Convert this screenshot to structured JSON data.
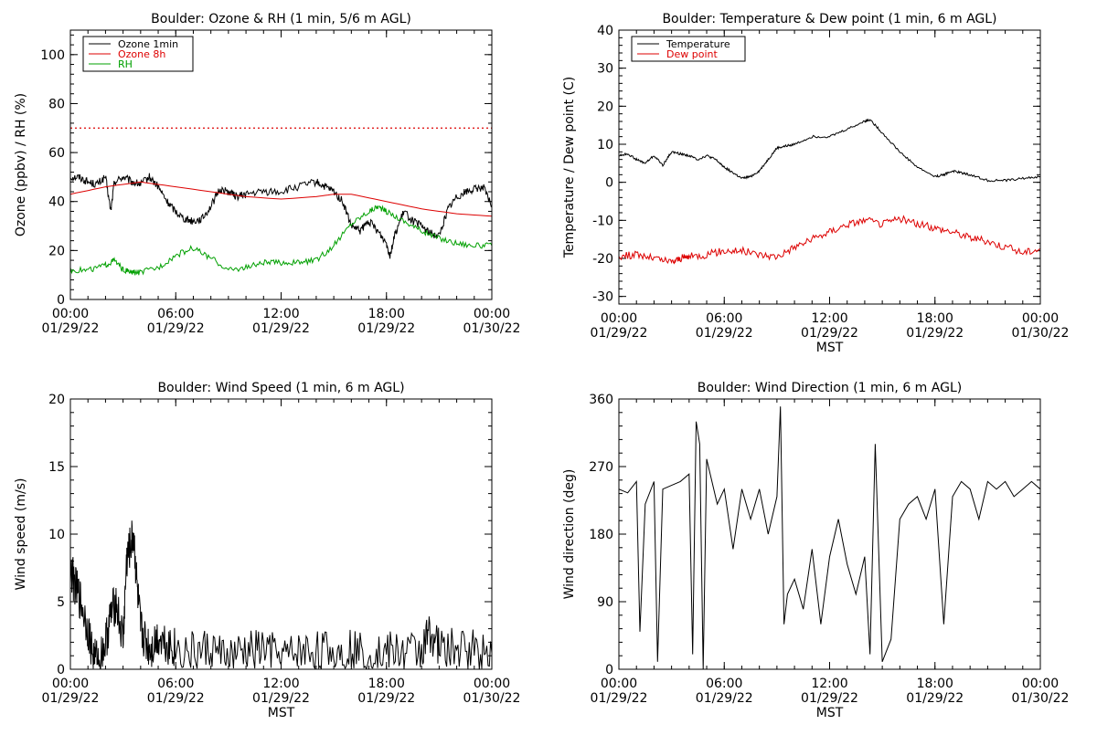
{
  "colors": {
    "ozone_1min": "#000000",
    "ozone_8h": "#dd0000",
    "rh": "#00a000",
    "temperature": "#000000",
    "dew_point": "#dd0000",
    "reference_line": "#dd0000"
  },
  "chart_data": [
    {
      "type": "line",
      "title": "Boulder: Ozone & RH (1 min, 5/6 m AGL)",
      "xlabel": "",
      "ylabel": "Ozone (ppbv) / RH (%)",
      "x_ticks": [
        "00:00",
        "06:00",
        "12:00",
        "18:00",
        "00:00"
      ],
      "x_dates": [
        "01/29/22",
        "01/29/22",
        "01/29/22",
        "01/29/22",
        "01/30/22"
      ],
      "xlim_hours": [
        0,
        24
      ],
      "ylim": [
        0,
        110
      ],
      "y_ticks": [
        0,
        20,
        40,
        60,
        80,
        100
      ],
      "legend": "top-left",
      "reference_line": {
        "y": 70,
        "style": "dotted",
        "color": "#dd0000"
      },
      "series": [
        {
          "name": "Ozone 1min",
          "color": "#000000",
          "x": [
            0,
            0.5,
            1,
            1.5,
            2,
            2.3,
            2.5,
            3,
            3.5,
            4,
            4.5,
            5,
            5.5,
            6,
            6.5,
            7,
            7.5,
            8,
            8.5,
            9,
            9.5,
            10,
            11,
            12,
            13,
            14,
            14.5,
            15,
            15.5,
            16,
            16.5,
            17,
            17.5,
            18,
            18.2,
            18.5,
            19,
            19.5,
            20,
            20.5,
            21,
            21.5,
            22,
            22.5,
            23,
            23.5,
            24
          ],
          "y": [
            50,
            50,
            48,
            47,
            50,
            36,
            48,
            50,
            48,
            47,
            50,
            46,
            40,
            36,
            33,
            32,
            33,
            38,
            45,
            44,
            42,
            43,
            44,
            44,
            46,
            48,
            46,
            44,
            40,
            30,
            28,
            32,
            28,
            23,
            18,
            27,
            36,
            32,
            30,
            27,
            26,
            37,
            42,
            44,
            45,
            46,
            38
          ]
        },
        {
          "name": "Ozone 8h",
          "color": "#dd0000",
          "x": [
            0,
            2,
            4,
            6,
            8,
            10,
            12,
            14,
            15,
            16,
            18,
            20,
            22,
            24
          ],
          "y": [
            43,
            46,
            48,
            46,
            44,
            42,
            41,
            42,
            43,
            43,
            40,
            37,
            35,
            34
          ]
        },
        {
          "name": "RH",
          "color": "#00a000",
          "x": [
            0,
            1,
            2,
            2.5,
            3,
            3.5,
            4,
            5,
            6,
            7,
            8,
            9,
            10,
            11,
            12,
            13,
            14,
            15,
            16,
            17,
            17.5,
            18,
            19,
            20,
            21,
            22,
            23,
            24
          ],
          "y": [
            12,
            12,
            14,
            16,
            12,
            11,
            11,
            13,
            18,
            21,
            17,
            12,
            13,
            15,
            15,
            15,
            16,
            22,
            31,
            36,
            38,
            36,
            32,
            28,
            25,
            23,
            22,
            22
          ]
        }
      ]
    },
    {
      "type": "line",
      "title": "Boulder: Temperature & Dew point (1 min, 6 m AGL)",
      "xlabel": "MST",
      "ylabel": "Temperature / Dew point (C)",
      "x_ticks": [
        "00:00",
        "06:00",
        "12:00",
        "18:00",
        "00:00"
      ],
      "x_dates": [
        "01/29/22",
        "01/29/22",
        "01/29/22",
        "01/29/22",
        "01/30/22"
      ],
      "xlim_hours": [
        0,
        24
      ],
      "ylim": [
        -32,
        40
      ],
      "y_ticks": [
        -30,
        -20,
        -10,
        0,
        10,
        20,
        30,
        40
      ],
      "legend": "top-left",
      "series": [
        {
          "name": "Temperature",
          "color": "#000000",
          "x": [
            0,
            0.5,
            1,
            1.5,
            2,
            2.5,
            3,
            3.5,
            4,
            4.5,
            5,
            5.5,
            6,
            6.5,
            7,
            7.5,
            8,
            8.5,
            9,
            9.5,
            10,
            11,
            12,
            13,
            14,
            14.3,
            15,
            16,
            17,
            18,
            18.5,
            19,
            19.5,
            20,
            21,
            22,
            23,
            24
          ],
          "y": [
            7,
            7.5,
            6,
            5,
            7,
            4.5,
            8,
            7.5,
            7,
            6,
            7,
            6,
            4,
            2.5,
            1,
            1.5,
            3,
            6,
            9,
            9.5,
            10,
            12,
            12,
            14,
            16,
            16.5,
            13,
            8,
            4,
            1.5,
            2,
            3,
            2.5,
            2,
            0.5,
            0.5,
            1,
            1.5
          ]
        },
        {
          "name": "Dew point",
          "color": "#dd0000",
          "x": [
            0,
            1,
            2,
            3,
            3.5,
            4,
            5,
            6,
            7,
            8,
            9,
            10,
            11,
            12,
            13,
            14,
            15,
            16,
            17,
            18,
            19,
            20,
            21,
            22,
            23,
            24
          ],
          "y": [
            -19.5,
            -19,
            -20,
            -21,
            -20,
            -19.5,
            -19,
            -18,
            -18,
            -19,
            -19.5,
            -17,
            -15,
            -13,
            -11,
            -10,
            -11,
            -9.5,
            -11,
            -12,
            -13,
            -14.5,
            -15.5,
            -17,
            -18.5,
            -17.5
          ]
        }
      ]
    },
    {
      "type": "line",
      "title": "Boulder: Wind Speed (1 min, 6 m AGL)",
      "xlabel": "MST",
      "ylabel": "Wind speed (m/s)",
      "x_ticks": [
        "00:00",
        "06:00",
        "12:00",
        "18:00",
        "00:00"
      ],
      "x_dates": [
        "01/29/22",
        "01/29/22",
        "01/29/22",
        "01/29/22",
        "01/30/22"
      ],
      "xlim_hours": [
        0,
        24
      ],
      "ylim": [
        0,
        20
      ],
      "y_ticks": [
        0,
        5,
        10,
        15,
        20
      ],
      "legend": "",
      "series": [
        {
          "name": "",
          "color": "#000000",
          "x": [
            0,
            0.3,
            0.6,
            1,
            1.3,
            1.6,
            2,
            2.3,
            2.6,
            3,
            3.2,
            3.4,
            3.6,
            3.8,
            4,
            4.3,
            4.6,
            5,
            5.5,
            6,
            7,
            8,
            9,
            10,
            11,
            12,
            13,
            14,
            15,
            16,
            17,
            18,
            19,
            20,
            20.5,
            21,
            22,
            23,
            24
          ],
          "y": [
            7.5,
            6,
            5,
            3,
            1,
            0.5,
            2,
            4,
            5,
            2,
            8,
            9,
            10,
            6,
            3,
            2,
            1.5,
            2.5,
            2,
            1.5,
            1.2,
            1.5,
            0.8,
            1.2,
            1.5,
            0.8,
            1.2,
            1.4,
            1.2,
            1.6,
            1.0,
            1.2,
            1.3,
            1.4,
            2.8,
            1.6,
            1.4,
            1.6,
            1.2
          ]
        }
      ]
    },
    {
      "type": "line",
      "title": "Boulder: Wind Direction (1 min, 6 m AGL)",
      "xlabel": "MST",
      "ylabel": "Wind direction (deg)",
      "x_ticks": [
        "00:00",
        "06:00",
        "12:00",
        "18:00",
        "00:00"
      ],
      "x_dates": [
        "01/29/22",
        "01/29/22",
        "01/29/22",
        "01/29/22",
        "01/30/22"
      ],
      "xlim_hours": [
        0,
        24
      ],
      "ylim": [
        0,
        360
      ],
      "y_ticks": [
        0,
        90,
        180,
        270,
        360
      ],
      "legend": "",
      "series": [
        {
          "name": "",
          "color": "#000000",
          "x": [
            0,
            0.5,
            1,
            1.2,
            1.5,
            2,
            2.2,
            2.5,
            3,
            3.5,
            4,
            4.2,
            4.4,
            4.6,
            4.8,
            5,
            5.3,
            5.6,
            6,
            6.5,
            7,
            7.5,
            8,
            8.5,
            9,
            9.2,
            9.4,
            9.6,
            10,
            10.5,
            11,
            11.5,
            12,
            12.5,
            13,
            13.5,
            14,
            14.3,
            14.6,
            15,
            15.5,
            16,
            16.5,
            17,
            17.5,
            18,
            18.5,
            19,
            19.5,
            20,
            20.5,
            21,
            21.5,
            22,
            22.5,
            23,
            23.5,
            24
          ],
          "y": [
            240,
            235,
            250,
            50,
            220,
            250,
            10,
            240,
            245,
            250,
            260,
            20,
            330,
            300,
            0,
            280,
            250,
            220,
            240,
            160,
            240,
            200,
            240,
            180,
            230,
            350,
            60,
            100,
            120,
            80,
            160,
            60,
            150,
            200,
            140,
            100,
            150,
            20,
            300,
            10,
            40,
            200,
            220,
            230,
            200,
            240,
            60,
            230,
            250,
            240,
            200,
            250,
            240,
            250,
            230,
            240,
            250,
            240
          ]
        }
      ]
    }
  ]
}
